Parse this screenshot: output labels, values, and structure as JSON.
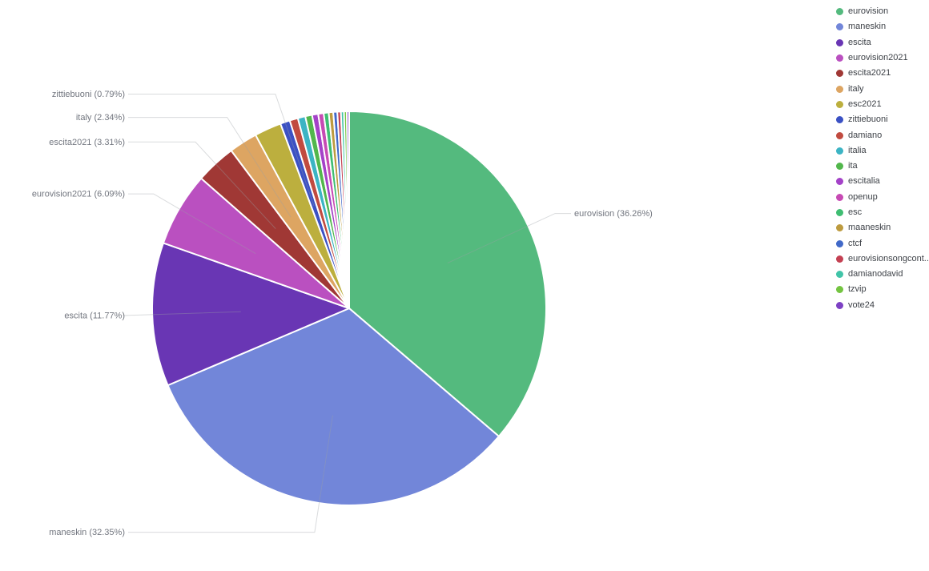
{
  "chart_data": {
    "type": "pie",
    "title": "",
    "value_unit": "percent",
    "start_angle": "12-oclock",
    "direction": "clockwise",
    "grid": false,
    "legend_position": "top-right",
    "series": [
      {
        "label": "eurovision",
        "value": 36.26,
        "color": "#54ba7e",
        "callout": "eurovision (36.26%)"
      },
      {
        "label": "maneskin",
        "value": 32.35,
        "color": "#7286d9",
        "callout": "maneskin (32.35%)"
      },
      {
        "label": "escita",
        "value": 11.77,
        "color": "#6936b4",
        "callout": "escita (11.77%)"
      },
      {
        "label": "eurovision2021",
        "value": 6.09,
        "color": "#ba50c0",
        "callout": "eurovision2021 (6.09%)"
      },
      {
        "label": "escita2021",
        "value": 3.31,
        "color": "#a03835",
        "callout": "escita2021 (3.31%)"
      },
      {
        "label": "italy",
        "value": 2.34,
        "color": "#dda562",
        "callout": "italy (2.34%)"
      },
      {
        "label": "esc2021",
        "value": 2.21,
        "color": "#bcaf3e",
        "callout": null
      },
      {
        "label": "zittiebuoni",
        "value": 0.79,
        "color": "#3b51c4",
        "callout": "zittiebuoni (0.79%)"
      },
      {
        "label": "damiano",
        "value": 0.68,
        "color": "#c14b40",
        "callout": null
      },
      {
        "label": "italia",
        "value": 0.62,
        "color": "#3cb4c4",
        "callout": null
      },
      {
        "label": "ita",
        "value": 0.56,
        "color": "#52b74c",
        "callout": null
      },
      {
        "label": "escitalia",
        "value": 0.5,
        "color": "#a442c8",
        "callout": null
      },
      {
        "label": "openup",
        "value": 0.45,
        "color": "#c74ab4",
        "callout": null
      },
      {
        "label": "esc",
        "value": 0.41,
        "color": "#3fbd72",
        "callout": null
      },
      {
        "label": "maaneskin",
        "value": 0.37,
        "color": "#bd9b3f",
        "callout": null
      },
      {
        "label": "ctcf",
        "value": 0.33,
        "color": "#4169c8",
        "callout": null
      },
      {
        "label": "eurovisionsongcont...",
        "value": 0.29,
        "color": "#c44153",
        "callout": null
      },
      {
        "label": "damianodavid",
        "value": 0.25,
        "color": "#41c4a8",
        "callout": null
      },
      {
        "label": "tzvip",
        "value": 0.23,
        "color": "#74c441",
        "callout": null
      },
      {
        "label": "vote24",
        "value": 0.19,
        "color": "#7d41c4",
        "callout": null
      }
    ]
  },
  "colors": {
    "background": "#ffffff",
    "callout_text": "#72767f",
    "callout_line": "#d4d5db",
    "legend_text": "#3d4147",
    "slice_border": "#ffffff"
  }
}
